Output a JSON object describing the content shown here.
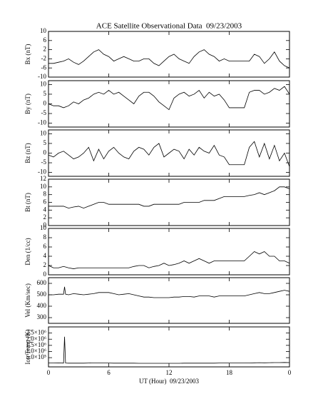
{
  "chart_data": [
    {
      "type": "line",
      "title": "ACE Satellite Observational Data  09/23/2003",
      "ylabel": "Bx (nT)",
      "xlim": [
        0,
        24
      ],
      "ylim": [
        -10,
        10
      ],
      "yticks": [
        10,
        6,
        2,
        -2,
        -6,
        -10
      ],
      "color": "#000000",
      "x": [
        0,
        0.5,
        1,
        1.5,
        2,
        2.5,
        3,
        3.5,
        4,
        4.5,
        5,
        5.5,
        6,
        6.5,
        7,
        7.5,
        8,
        8.5,
        9,
        9.5,
        10,
        10.5,
        11,
        11.5,
        12,
        12.5,
        13,
        13.5,
        14,
        14.5,
        15,
        15.5,
        16,
        16.5,
        17,
        17.5,
        18,
        18.5,
        19,
        19.5,
        20,
        20.5,
        21,
        21.5,
        22,
        22.5,
        23,
        23.5,
        24
      ],
      "values": [
        -4,
        -4,
        -3.5,
        -3,
        -2,
        -3.5,
        -4.5,
        -3,
        -1,
        1,
        2,
        0,
        -1,
        -3,
        -2,
        -1,
        -2,
        -3,
        -3,
        -2,
        -2,
        -4,
        -5,
        -3,
        -1,
        0,
        -2,
        -3,
        -4,
        -1,
        1,
        2,
        0,
        -1,
        -3,
        -2,
        -3,
        -3,
        -3,
        -3,
        -3,
        0,
        -1,
        -4,
        -2,
        1,
        -3,
        -5,
        -6
      ]
    },
    {
      "type": "line",
      "ylabel": "By (nT)",
      "xlim": [
        0,
        24
      ],
      "ylim": [
        -12,
        12
      ],
      "yticks": [
        10,
        5,
        0,
        -5,
        -10
      ],
      "color": "#000000",
      "x": [
        0,
        0.5,
        1,
        1.5,
        2,
        2.5,
        3,
        3.5,
        4,
        4.5,
        5,
        5.5,
        6,
        6.5,
        7,
        7.5,
        8,
        8.5,
        9,
        9.5,
        10,
        10.5,
        11,
        11.5,
        12,
        12.5,
        13,
        13.5,
        14,
        14.5,
        15,
        15.5,
        16,
        16.5,
        17,
        17.5,
        18,
        18.5,
        19,
        19.5,
        20,
        20.5,
        21,
        21.5,
        22,
        22.5,
        23,
        23.5,
        24
      ],
      "values": [
        0,
        -1,
        -1,
        -2,
        -1,
        1,
        0,
        2,
        3,
        5,
        6,
        5,
        7,
        5,
        6,
        4,
        2,
        0,
        4,
        6,
        6,
        4,
        1,
        -1,
        -3,
        3,
        5,
        6,
        4,
        5,
        7,
        3,
        6,
        4,
        5,
        2,
        -2,
        -2,
        -2,
        -2,
        6,
        7,
        7,
        5,
        6,
        8,
        7,
        9,
        5
      ]
    },
    {
      "type": "line",
      "ylabel": "Bz (nT)",
      "xlim": [
        0,
        24
      ],
      "ylim": [
        -12,
        12
      ],
      "yticks": [
        10,
        5,
        0,
        -5,
        -10
      ],
      "color": "#000000",
      "x": [
        0,
        0.5,
        1,
        1.5,
        2,
        2.5,
        3,
        3.5,
        4,
        4.5,
        5,
        5.5,
        6,
        6.5,
        7,
        7.5,
        8,
        8.5,
        9,
        9.5,
        10,
        10.5,
        11,
        11.5,
        12,
        12.5,
        13,
        13.5,
        14,
        14.5,
        15,
        15.5,
        16,
        16.5,
        17,
        17.5,
        18,
        18.5,
        19,
        19.5,
        20,
        20.5,
        21,
        21.5,
        22,
        22.5,
        23,
        23.5,
        24
      ],
      "values": [
        -1,
        -2,
        0,
        1,
        -1,
        -3,
        -2,
        0,
        3,
        -4,
        2,
        -3,
        1,
        3,
        0,
        -2,
        -3,
        1,
        3,
        2,
        -1,
        3,
        5,
        -2,
        0,
        2,
        1,
        -3,
        2,
        -1,
        3,
        1,
        0,
        4,
        -1,
        -2,
        -6,
        -6,
        -6,
        -6,
        3,
        6,
        -2,
        5,
        -3,
        4,
        -4,
        0,
        -7
      ]
    },
    {
      "type": "line",
      "ylabel": "Bt (nT)",
      "xlim": [
        0,
        24
      ],
      "ylim": [
        0,
        12
      ],
      "yticks": [
        12,
        10,
        8,
        6,
        4,
        2,
        0
      ],
      "color": "#000000",
      "x": [
        0,
        0.5,
        1,
        1.5,
        2,
        2.5,
        3,
        3.5,
        4,
        4.5,
        5,
        5.5,
        6,
        6.5,
        7,
        7.5,
        8,
        8.5,
        9,
        9.5,
        10,
        10.5,
        11,
        11.5,
        12,
        12.5,
        13,
        13.5,
        14,
        14.5,
        15,
        15.5,
        16,
        16.5,
        17,
        17.5,
        18,
        18.5,
        19,
        19.5,
        20,
        20.5,
        21,
        21.5,
        22,
        22.5,
        23,
        23.5,
        24
      ],
      "values": [
        5,
        5,
        5,
        5,
        4.5,
        4.8,
        5,
        4.5,
        5,
        5.5,
        6,
        6,
        5.5,
        5.5,
        5.5,
        5.5,
        5.5,
        5.5,
        5.5,
        5,
        5,
        5.5,
        5.5,
        5.5,
        5.5,
        5.5,
        5.5,
        6,
        6,
        6,
        6,
        6.5,
        6.5,
        6.5,
        7,
        7.5,
        7.5,
        7.5,
        7.5,
        7.5,
        7.8,
        8,
        8.5,
        8,
        8.5,
        9,
        10,
        10,
        9.5
      ]
    },
    {
      "type": "line",
      "ylabel": "Den (1/cc)",
      "xlim": [
        0,
        24
      ],
      "ylim": [
        0,
        10
      ],
      "yticks": [
        10,
        8,
        6,
        4,
        2,
        0
      ],
      "color": "#000000",
      "x": [
        0,
        0.5,
        1,
        1.5,
        2,
        2.5,
        3,
        3.5,
        4,
        4.5,
        5,
        5.5,
        6,
        6.5,
        7,
        7.5,
        8,
        8.5,
        9,
        9.5,
        10,
        10.5,
        11,
        11.5,
        12,
        12.5,
        13,
        13.5,
        14,
        14.5,
        15,
        15.5,
        16,
        16.5,
        17,
        17.5,
        18,
        18.5,
        19,
        19.5,
        20,
        20.5,
        21,
        21.5,
        22,
        22.5,
        23,
        23.5,
        24
      ],
      "values": [
        2,
        1.5,
        1.5,
        1.8,
        1.5,
        1.3,
        1.5,
        1.5,
        1.5,
        1.5,
        1.5,
        1.5,
        1.5,
        1.5,
        1.5,
        1.5,
        1.5,
        1.8,
        2,
        2,
        1.5,
        1.8,
        2,
        2.5,
        2,
        2.2,
        2.5,
        3,
        2.5,
        3,
        3.5,
        3,
        2.5,
        3,
        3,
        3,
        3,
        3,
        3,
        3,
        4,
        5,
        4.5,
        5,
        4,
        4,
        3,
        3,
        2.5
      ]
    },
    {
      "type": "line",
      "ylabel": "Vel (Km/sec)",
      "xlim": [
        0,
        24
      ],
      "ylim": [
        250,
        650
      ],
      "yticks": [
        600,
        500,
        400,
        300
      ],
      "color": "#000000",
      "x": [
        0,
        0.5,
        1,
        1.5,
        1.6,
        1.7,
        2,
        2.5,
        3,
        3.5,
        4,
        4.5,
        5,
        5.5,
        6,
        6.5,
        7,
        7.5,
        8,
        8.5,
        9,
        9.5,
        10,
        10.5,
        11,
        11.5,
        12,
        12.5,
        13,
        13.5,
        14,
        14.5,
        15,
        15.5,
        16,
        16.5,
        17,
        17.5,
        18,
        18.5,
        19,
        19.5,
        20,
        20.5,
        21,
        21.5,
        22,
        22.5,
        23,
        23.5,
        24
      ],
      "values": [
        500,
        500,
        505,
        505,
        570,
        505,
        500,
        510,
        505,
        500,
        505,
        510,
        520,
        520,
        520,
        510,
        500,
        505,
        510,
        500,
        490,
        480,
        480,
        475,
        475,
        475,
        475,
        480,
        480,
        485,
        485,
        480,
        490,
        490,
        490,
        480,
        490,
        490,
        490,
        490,
        490,
        490,
        500,
        510,
        520,
        510,
        510,
        520,
        530,
        540,
        530
      ]
    },
    {
      "type": "line",
      "ylabel": "Ion Temp (K)",
      "xlabel": "UT (Hour)  09/23/2003",
      "xlim": [
        0,
        24
      ],
      "ylim": [
        -250000,
        3000000
      ],
      "color": "#000000",
      "xticks": [
        0,
        6,
        12,
        18,
        {
          "value": 24,
          "label": "0"
        }
      ],
      "yticks": [
        {
          "value": 2500000,
          "label": "2.5×10⁶"
        },
        {
          "value": 2000000,
          "label": "2.0×10⁶"
        },
        {
          "value": 1500000,
          "label": "1.5×10⁶"
        },
        {
          "value": 1000000,
          "label": "1.0×10⁶"
        },
        {
          "value": 500000,
          "label": "5.0×10⁵"
        }
      ],
      "x": [
        0,
        0.5,
        1,
        1.5,
        1.6,
        1.7,
        2,
        2.5,
        3,
        3.5,
        4,
        4.5,
        5,
        5.5,
        6,
        6.5,
        7,
        7.5,
        8,
        8.5,
        9,
        9.5,
        10,
        10.5,
        11,
        11.5,
        12,
        12.5,
        13,
        13.5,
        14,
        14.5,
        15,
        15.5,
        16,
        16.5,
        17,
        17.5,
        18,
        18.5,
        19,
        19.5,
        20,
        20.5,
        21,
        21.5,
        22,
        22.5,
        23,
        23.5,
        24
      ],
      "values": [
        60000,
        60000,
        70000,
        60000,
        2200000,
        60000,
        50000,
        50000,
        50000,
        50000,
        60000,
        70000,
        70000,
        60000,
        60000,
        50000,
        50000,
        50000,
        50000,
        50000,
        40000,
        40000,
        40000,
        40000,
        40000,
        40000,
        40000,
        40000,
        40000,
        50000,
        50000,
        50000,
        50000,
        50000,
        50000,
        50000,
        60000,
        60000,
        60000,
        60000,
        60000,
        60000,
        70000,
        80000,
        90000,
        80000,
        90000,
        100000,
        100000,
        110000,
        100000
      ]
    }
  ]
}
